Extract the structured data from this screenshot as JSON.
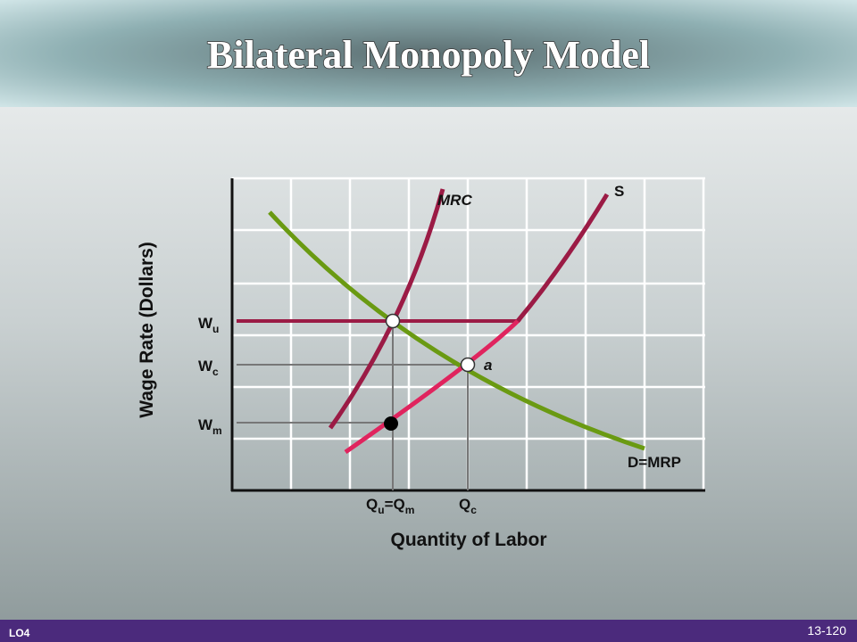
{
  "header": {
    "title": "Bilateral Monopoly Model"
  },
  "diagram": {
    "y_axis_label": "Wage Rate (Dollars)",
    "x_axis_label": "Quantity of Labor",
    "curves": {
      "mrc": "MRC",
      "supply": "S",
      "demand": "D=MRP"
    },
    "point_label": "a",
    "wage_labels": {
      "wu": [
        "W",
        "u"
      ],
      "wc": [
        "W",
        "c"
      ],
      "wm": [
        "W",
        "m"
      ]
    },
    "quantity_labels": {
      "qu_qm": [
        "Q",
        "u",
        "=Q",
        "m"
      ],
      "qc": [
        "Q",
        "c"
      ]
    }
  },
  "footer": {
    "objective": "LO4",
    "page": "13-120"
  }
}
